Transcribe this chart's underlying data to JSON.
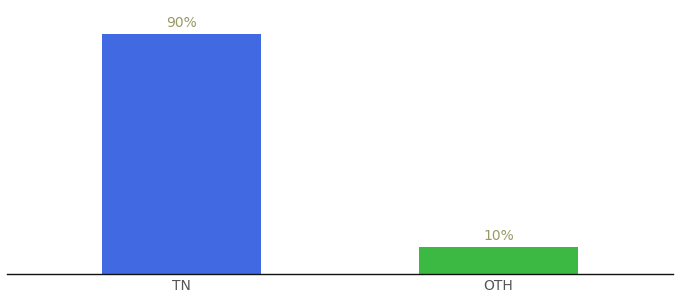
{
  "categories": [
    "TN",
    "OTH"
  ],
  "values": [
    90,
    10
  ],
  "bar_colors": [
    "#4169E1",
    "#3CB943"
  ],
  "labels": [
    "90%",
    "10%"
  ],
  "background_color": "#ffffff",
  "label_color": "#999966",
  "tick_color": "#555555",
  "ylim": [
    0,
    100
  ],
  "bar_width": 0.5,
  "label_fontsize": 10,
  "tick_fontsize": 10
}
